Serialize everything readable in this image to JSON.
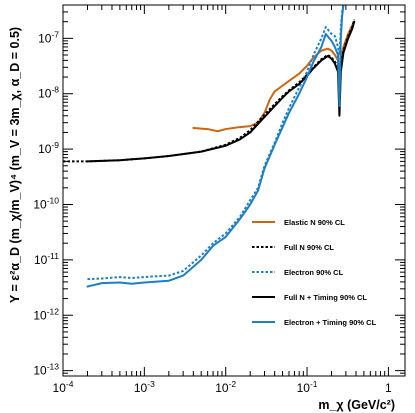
{
  "chart_data": {
    "type": "line",
    "xlabel": "m_χ (GeV/c²)",
    "ylabel": "Y = ε²α_D (m_χ/m_V)⁴ (m_V = 3m_χ, α_D = 0.5)",
    "xlim": [
      0.0001,
      1.6
    ],
    "ylim": [
      8e-14,
      4e-07
    ],
    "xscale": "log",
    "yscale": "log",
    "grid": false,
    "legend_position": "lower-right",
    "x_ticks": [
      {
        "value": 0.0001,
        "mant": "10",
        "exp": "-4"
      },
      {
        "value": 0.001,
        "mant": "10",
        "exp": "-3"
      },
      {
        "value": 0.01,
        "mant": "10",
        "exp": "-2"
      },
      {
        "value": 0.1,
        "mant": "10",
        "exp": "-1"
      },
      {
        "value": 1,
        "mant": "1",
        "exp": ""
      }
    ],
    "y_ticks": [
      {
        "value": 1e-13,
        "mant": "10",
        "exp": "-13"
      },
      {
        "value": 1e-12,
        "mant": "10",
        "exp": "-12"
      },
      {
        "value": 1e-11,
        "mant": "10",
        "exp": "-11"
      },
      {
        "value": 1e-10,
        "mant": "10",
        "exp": "-10"
      },
      {
        "value": 1e-09,
        "mant": "10",
        "exp": "-9"
      },
      {
        "value": 1e-08,
        "mant": "10",
        "exp": "-8"
      },
      {
        "value": 1e-07,
        "mant": "10",
        "exp": "-7"
      }
    ],
    "series": [
      {
        "name": "Elastic N 90% CL",
        "color": "#cc6611",
        "dash": "solid",
        "points": [
          [
            0.004,
            2.4e-09
          ],
          [
            0.006,
            2.3e-09
          ],
          [
            0.008,
            2.1e-09
          ],
          [
            0.01,
            2.3e-09
          ],
          [
            0.015,
            2.5e-09
          ],
          [
            0.02,
            2.6e-09
          ],
          [
            0.025,
            3e-09
          ],
          [
            0.03,
            4.5e-09
          ],
          [
            0.035,
            8e-09
          ],
          [
            0.04,
            1.1e-08
          ],
          [
            0.05,
            1.4e-08
          ],
          [
            0.06,
            1.7e-08
          ],
          [
            0.08,
            2.3e-08
          ],
          [
            0.1,
            3.2e-08
          ],
          [
            0.12,
            4.5e-08
          ],
          [
            0.15,
            6e-08
          ],
          [
            0.18,
            6.5e-08
          ],
          [
            0.2,
            6e-08
          ],
          [
            0.22,
            5e-08
          ],
          [
            0.24,
            4e-08
          ],
          [
            0.25,
            1.2e-08
          ],
          [
            0.26,
            4e-08
          ],
          [
            0.28,
            7e-08
          ],
          [
            0.32,
            1.2e-07
          ],
          [
            0.35,
            1.6e-07
          ],
          [
            0.38,
            2e-07
          ]
        ]
      },
      {
        "name": "Full N 90% CL",
        "color": "#000000",
        "dash": "dotted",
        "points": [
          [
            0.0001,
            6e-10
          ],
          [
            0.0002,
            6e-10
          ],
          [
            0.0005,
            6.3e-10
          ],
          [
            0.001,
            6.8e-10
          ],
          [
            0.002,
            7.5e-10
          ],
          [
            0.005,
            9e-10
          ],
          [
            0.01,
            1.2e-09
          ],
          [
            0.015,
            1.6e-09
          ],
          [
            0.02,
            2.2e-09
          ],
          [
            0.03,
            4.2e-09
          ],
          [
            0.04,
            6.5e-09
          ],
          [
            0.05,
            9e-09
          ],
          [
            0.06,
            1.15e-08
          ],
          [
            0.08,
            1.6e-08
          ],
          [
            0.1,
            2.2e-08
          ],
          [
            0.12,
            3e-08
          ],
          [
            0.15,
            4.2e-08
          ],
          [
            0.18,
            5e-08
          ],
          [
            0.2,
            4.5e-08
          ],
          [
            0.22,
            3.8e-08
          ],
          [
            0.24,
            3e-08
          ],
          [
            0.25,
            1.5e-08
          ],
          [
            0.26,
            3e-08
          ],
          [
            0.28,
            6e-08
          ],
          [
            0.32,
            1.1e-07
          ],
          [
            0.36,
            1.6e-07
          ],
          [
            0.38,
            2.2e-07
          ]
        ]
      },
      {
        "name": "Electron 90% CL",
        "color": "#1f7fc4",
        "dash": "dotted",
        "points": [
          [
            0.0002,
            4.5e-12
          ],
          [
            0.0003,
            4.6e-12
          ],
          [
            0.0005,
            4.9e-12
          ],
          [
            0.0007,
            4.7e-12
          ],
          [
            0.001,
            4.9e-12
          ],
          [
            0.002,
            5.2e-12
          ],
          [
            0.003,
            6.3e-12
          ],
          [
            0.005,
            1.2e-11
          ],
          [
            0.007,
            2e-11
          ],
          [
            0.01,
            3e-11
          ],
          [
            0.015,
            6e-11
          ],
          [
            0.02,
            1.2e-10
          ],
          [
            0.025,
            2e-10
          ],
          [
            0.03,
            5e-10
          ],
          [
            0.04,
            1.3e-09
          ],
          [
            0.05,
            3e-09
          ],
          [
            0.06,
            5.5e-09
          ],
          [
            0.08,
            1.3e-08
          ],
          [
            0.1,
            2.5e-08
          ],
          [
            0.12,
            5e-08
          ],
          [
            0.15,
            1e-07
          ],
          [
            0.17,
            1.6e-07
          ],
          [
            0.2,
            1.2e-07
          ],
          [
            0.22,
            1.1e-07
          ],
          [
            0.24,
            7e-08
          ],
          [
            0.25,
            5e-08
          ],
          [
            0.26,
            1.5e-07
          ],
          [
            0.27,
            3e-07
          ],
          [
            0.28,
            4.2e-07
          ]
        ]
      },
      {
        "name": "Full N + Timing 90% CL",
        "color": "#000000",
        "dash": "solid",
        "points": [
          [
            0.0002,
            6e-10
          ],
          [
            0.0005,
            6.3e-10
          ],
          [
            0.001,
            6.8e-10
          ],
          [
            0.002,
            7.5e-10
          ],
          [
            0.005,
            9e-10
          ],
          [
            0.01,
            1.15e-09
          ],
          [
            0.015,
            1.5e-09
          ],
          [
            0.02,
            2e-09
          ],
          [
            0.03,
            3.8e-09
          ],
          [
            0.04,
            6e-09
          ],
          [
            0.05,
            8.5e-09
          ],
          [
            0.06,
            1.1e-08
          ],
          [
            0.08,
            1.5e-08
          ],
          [
            0.1,
            2.1e-08
          ],
          [
            0.12,
            2.9e-08
          ],
          [
            0.15,
            4e-08
          ],
          [
            0.18,
            4.8e-08
          ],
          [
            0.2,
            4.3e-08
          ],
          [
            0.22,
            3.5e-08
          ],
          [
            0.24,
            2.5e-08
          ],
          [
            0.25,
            4e-09
          ],
          [
            0.26,
            2.5e-08
          ],
          [
            0.28,
            5.5e-08
          ],
          [
            0.32,
            1e-07
          ],
          [
            0.36,
            1.5e-07
          ],
          [
            0.38,
            2e-07
          ]
        ]
      },
      {
        "name": "Electron + Timing 90% CL",
        "color": "#1f7fc4",
        "dash": "solid",
        "points": [
          [
            0.0002,
            3.3e-12
          ],
          [
            0.0003,
            3.8e-12
          ],
          [
            0.0005,
            3.9e-12
          ],
          [
            0.0007,
            3.7e-12
          ],
          [
            0.001,
            3.9e-12
          ],
          [
            0.002,
            4.2e-12
          ],
          [
            0.003,
            5.2e-12
          ],
          [
            0.005,
            1e-11
          ],
          [
            0.007,
            1.8e-11
          ],
          [
            0.01,
            2.6e-11
          ],
          [
            0.015,
            5.5e-11
          ],
          [
            0.02,
            1e-10
          ],
          [
            0.025,
            1.8e-10
          ],
          [
            0.03,
            4.5e-10
          ],
          [
            0.04,
            1.2e-09
          ],
          [
            0.05,
            2.5e-09
          ],
          [
            0.06,
            4.5e-09
          ],
          [
            0.08,
            1e-08
          ],
          [
            0.1,
            2e-08
          ],
          [
            0.12,
            3.8e-08
          ],
          [
            0.15,
            7e-08
          ],
          [
            0.17,
            1.2e-07
          ],
          [
            0.2,
            9e-08
          ],
          [
            0.22,
            7e-08
          ],
          [
            0.24,
            5e-08
          ],
          [
            0.25,
            6e-09
          ],
          [
            0.26,
            1e-07
          ],
          [
            0.27,
            2.5e-07
          ],
          [
            0.28,
            4e-07
          ]
        ]
      }
    ]
  }
}
